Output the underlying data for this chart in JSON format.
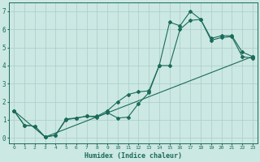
{
  "xlabel": "Humidex (Indice chaleur)",
  "xlim": [
    -0.5,
    23.5
  ],
  "ylim": [
    -0.3,
    7.5
  ],
  "xticks": [
    0,
    1,
    2,
    3,
    4,
    5,
    6,
    7,
    8,
    9,
    10,
    11,
    12,
    13,
    14,
    15,
    16,
    17,
    18,
    19,
    20,
    21,
    22,
    23
  ],
  "yticks": [
    0,
    1,
    2,
    3,
    4,
    5,
    6,
    7
  ],
  "background_color": "#cce8e2",
  "grid_color": "#a8cccc",
  "line_color": "#1a6b5a",
  "line1_x": [
    0,
    1,
    2,
    3,
    4,
    5,
    6,
    7,
    8,
    9,
    10,
    11,
    12,
    13,
    14,
    15,
    16,
    17,
    18,
    19,
    20,
    21,
    22,
    23
  ],
  "line1_y": [
    1.5,
    0.7,
    0.65,
    0.05,
    0.15,
    1.05,
    1.1,
    1.2,
    1.15,
    1.4,
    1.1,
    1.15,
    1.9,
    2.5,
    4.0,
    6.4,
    6.2,
    7.0,
    6.55,
    5.5,
    5.65,
    5.65,
    4.75,
    4.5
  ],
  "line2_x": [
    0,
    1,
    2,
    3,
    4,
    5,
    6,
    7,
    8,
    9,
    10,
    11,
    12,
    13,
    14,
    15,
    16,
    17,
    18,
    19,
    20,
    21,
    22,
    23
  ],
  "line2_y": [
    1.5,
    0.7,
    0.65,
    0.05,
    0.15,
    1.0,
    1.1,
    1.2,
    1.2,
    1.5,
    2.0,
    2.4,
    2.55,
    2.6,
    4.0,
    4.0,
    6.0,
    6.5,
    6.55,
    5.4,
    5.55,
    5.6,
    4.5,
    4.4
  ],
  "line3_x": [
    0,
    3,
    23
  ],
  "line3_y": [
    1.5,
    0.05,
    4.5
  ]
}
